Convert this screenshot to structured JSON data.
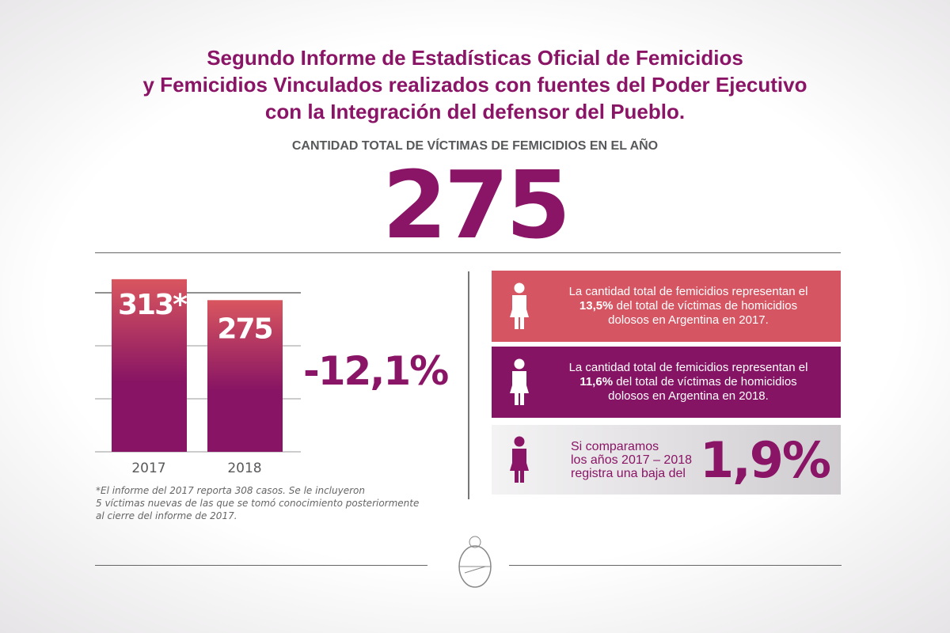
{
  "title_lines": [
    "Segundo Informe de Estadísticas Oficial de Femicidios",
    "y Femicidios Vinculados realizados con fuentes del Poder Ejecutivo",
    "con la Integración del defensor del Pueblo."
  ],
  "subtitle": "CANTIDAD TOTAL DE VÍCTIMAS DE FEMICIDIOS EN EL AÑO",
  "total": "275",
  "chart_data": {
    "type": "bar",
    "categories": [
      "2017",
      "2018"
    ],
    "values": [
      313,
      275
    ],
    "data_labels": [
      "313*",
      "275"
    ],
    "grid": true,
    "change_label": "-12,1%",
    "colors": {
      "top": "#d9565f",
      "bottom": "#871464"
    }
  },
  "footnote": [
    "*El informe del 2017 reporta 308 casos. Se le incluyeron",
    "5 víctimas nuevas de las que se tomó conocimiento posteriormente",
    "al cierre del informe de 2017."
  ],
  "boxes": [
    {
      "icon": "woman-icon",
      "line1": "La cantidad total de femicidios representan el",
      "bold": "13,5%",
      "line2": " del total de víctimas de homicidios",
      "line3": "dolosos en Argentina en 2017.",
      "color": "#d65562"
    },
    {
      "icon": "woman-icon",
      "line1": "La cantidad total de femicidios representan el",
      "bold": "11,6%",
      "line2": " del total de víctimas de homicidios",
      "line3": "dolosos en Argentina en 2018.",
      "color": "#861464"
    },
    {
      "icon": "woman-icon",
      "lines": [
        "Si comparamos",
        "los años 2017 – 2018",
        "registra una baja del"
      ],
      "value": "1,9%"
    }
  ]
}
